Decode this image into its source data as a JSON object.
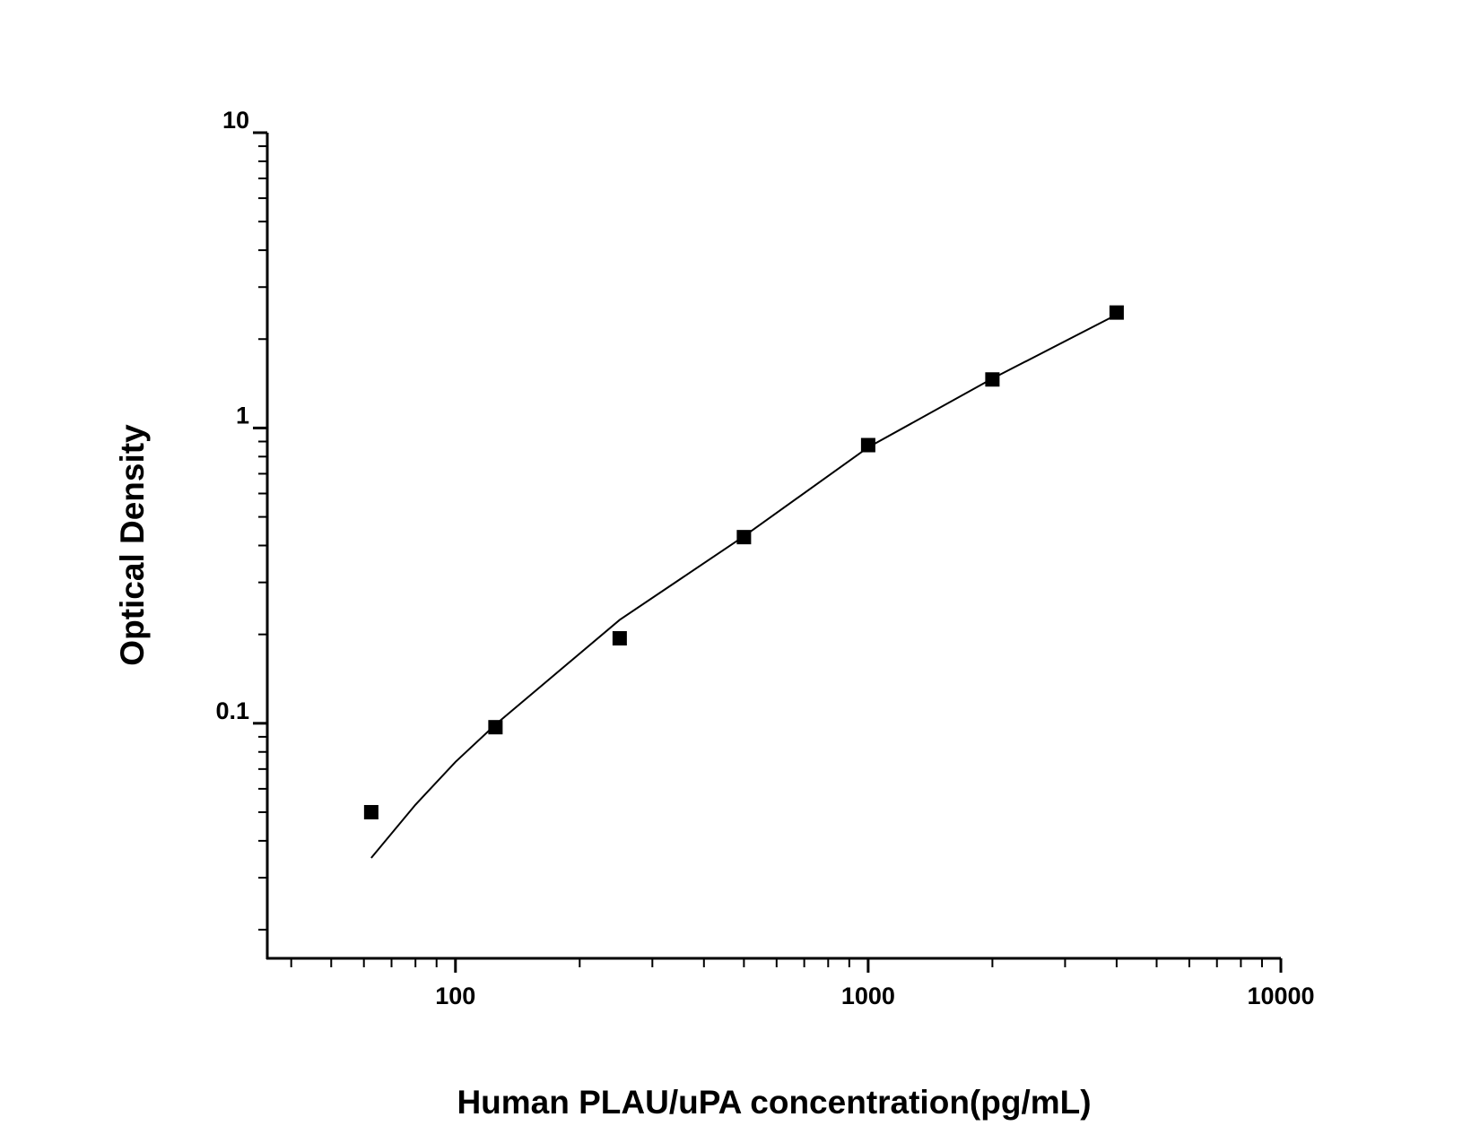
{
  "chart_data": {
    "type": "scatter",
    "x_label": "Human PLAU/uPA concentration(pg/mL)",
    "y_label": "Optical Density",
    "xscale": "log",
    "yscale": "log",
    "xlim": [
      35,
      10000
    ],
    "ylim": [
      0.016,
      10
    ],
    "xticks": [
      100,
      1000,
      10000
    ],
    "xminorticks": [
      40,
      50,
      60,
      70,
      80,
      90,
      200,
      300,
      400,
      500,
      600,
      700,
      800,
      900,
      2000,
      3000,
      4000,
      5000,
      6000,
      7000,
      8000,
      9000
    ],
    "yticks": [
      0.1,
      1,
      10
    ],
    "yminorticks": [
      0.02,
      0.03,
      0.04,
      0.05,
      0.06,
      0.07,
      0.08,
      0.09,
      0.2,
      0.3,
      0.4,
      0.5,
      0.6,
      0.7,
      0.8,
      0.9,
      2,
      3,
      4,
      5,
      6,
      7,
      8,
      9
    ],
    "series": [
      {
        "mode": "markers",
        "color": "#000000",
        "x": [
          62.5,
          125,
          250,
          500,
          1000,
          2000,
          4000
        ],
        "values": [
          0.05,
          0.097,
          0.194,
          0.427,
          0.875,
          1.46,
          2.46
        ]
      },
      {
        "mode": "line",
        "color": "#000000",
        "x": [
          62.5,
          80,
          100,
          125,
          250,
          500,
          1000,
          2000,
          4000
        ],
        "values": [
          0.035,
          0.053,
          0.074,
          0.099,
          0.224,
          0.43,
          0.86,
          1.47,
          2.42
        ]
      }
    ]
  }
}
